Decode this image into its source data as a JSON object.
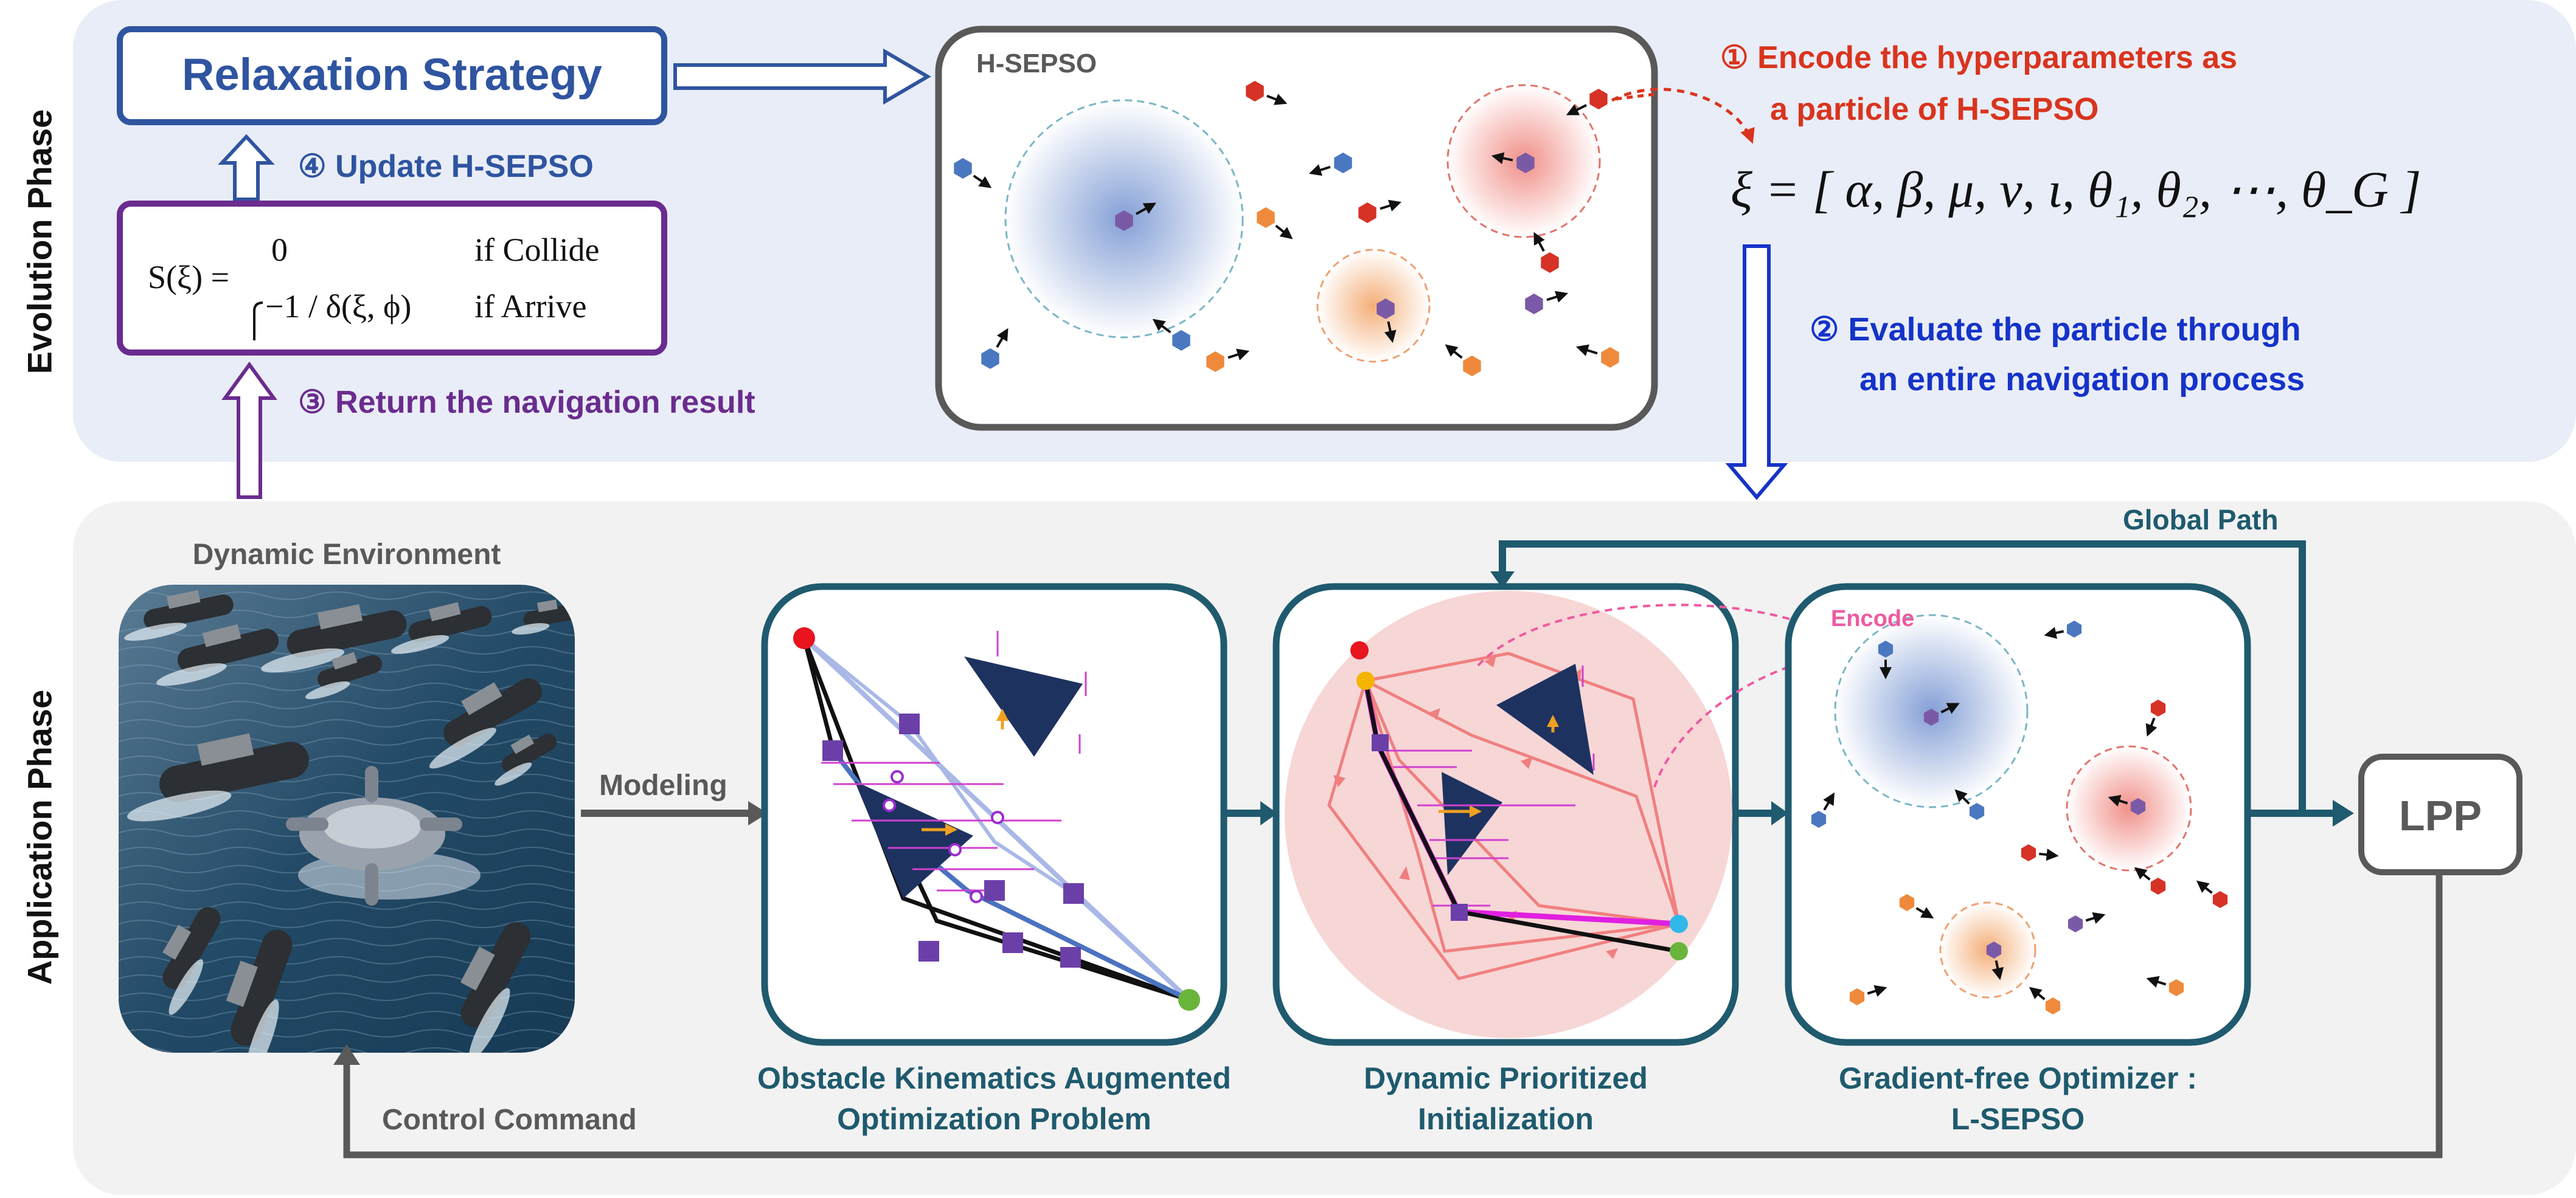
{
  "evolution_phase": {
    "label": "Evolution Phase",
    "relaxation_strategy": "Relaxation Strategy",
    "update_label": "④ Update H-SEPSO",
    "return_label": "③ Return the navigation result",
    "score_fn": {
      "lhs": "S(ξ) =",
      "case1_value": "0",
      "case1_cond": "if Collide",
      "case2_value": "−1 / δ(ξ, ϕ)",
      "case2_cond": "if Arrive"
    },
    "hsepso_title": "H-SEPSO",
    "encode_label_line1": "① Encode the hyperparameters as",
    "encode_label_line2": "a particle of H-SEPSO",
    "xi_vector": "ξ = [ α, β, μ, ν, ι, θ₁, θ₂, ⋯, θ_G ]",
    "evaluate_label_line1": "② Evaluate the particle through",
    "evaluate_label_line2": "an entire navigation process"
  },
  "application_phase": {
    "label": "Application Phase",
    "dynamic_environment": "Dynamic Environment",
    "modeling": "Modeling",
    "global_path": "Global Path",
    "encode": "Encode",
    "lpp": "LPP",
    "control_command": "Control Command",
    "box1_caption_line1": "Obstacle Kinematics Augmented",
    "box1_caption_line2": "Optimization Problem",
    "box2_caption_line1": "Dynamic Prioritized",
    "box2_caption_line2": "Initialization",
    "box3_caption_line1": "Gradient-free Optimizer :",
    "box3_caption_line2": "L-SEPSO"
  },
  "colors": {
    "evolution_bg": "#e9edf7",
    "application_bg": "#f2f2f2",
    "blue": "#2f54a0",
    "purple": "#6a2c8e",
    "red": "#d9341e",
    "deep_blue": "#1533c9",
    "teal": "#1f5a6e",
    "gray": "#595959",
    "particle_blue": "#4a78c0",
    "particle_red": "#d63226",
    "particle_orange": "#ef8a3c",
    "particle_purple": "#7a5aa6",
    "pink": "#ee5aa0"
  }
}
